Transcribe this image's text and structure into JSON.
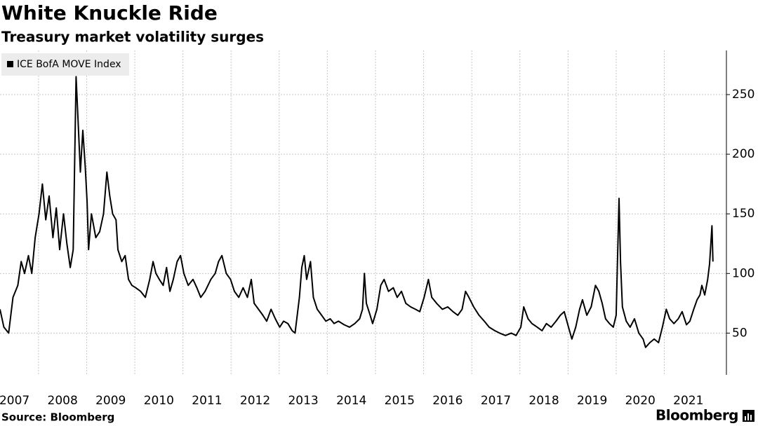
{
  "chart_data": {
    "type": "line",
    "title": "White Knuckle Ride",
    "subtitle": "Treasury market volatility surges",
    "source": "Source: Bloomberg",
    "brand": "Bloomberg",
    "legend": "top-left",
    "grid": true,
    "xlim": [
      2007.2,
      2022.29
    ],
    "ylim": [
      15,
      287
    ],
    "yticks": [
      50,
      100,
      150,
      200,
      250
    ],
    "xticks": [
      2007,
      2008,
      2009,
      2010,
      2011,
      2012,
      2013,
      2014,
      2015,
      2016,
      2017,
      2018,
      2019,
      2020,
      2021
    ],
    "x": [
      2007.2,
      2007.28,
      2007.38,
      2007.47,
      2007.57,
      2007.64,
      2007.71,
      2007.79,
      2007.86,
      2007.93,
      2008.01,
      2008.08,
      2008.15,
      2008.22,
      2008.3,
      2008.37,
      2008.44,
      2008.52,
      2008.59,
      2008.66,
      2008.72,
      2008.78,
      2008.82,
      2008.87,
      2008.92,
      2008.97,
      2009.01,
      2009.04,
      2009.1,
      2009.19,
      2009.27,
      2009.35,
      2009.42,
      2009.48,
      2009.54,
      2009.61,
      2009.65,
      2009.73,
      2009.8,
      2009.87,
      2009.94,
      2010.02,
      2010.12,
      2010.22,
      2010.31,
      2010.38,
      2010.44,
      2010.51,
      2010.59,
      2010.66,
      2010.73,
      2010.8,
      2010.88,
      2010.95,
      2011.02,
      2011.11,
      2011.21,
      2011.29,
      2011.37,
      2011.46,
      2011.58,
      2011.67,
      2011.74,
      2011.81,
      2011.9,
      2011.99,
      2012.07,
      2012.16,
      2012.25,
      2012.34,
      2012.42,
      2012.48,
      2012.57,
      2012.66,
      2012.74,
      2012.83,
      2012.92,
      2013.01,
      2013.09,
      2013.18,
      2013.27,
      2013.33,
      2013.42,
      2013.47,
      2013.52,
      2013.57,
      2013.65,
      2013.71,
      2013.79,
      2013.88,
      2013.97,
      2014.06,
      2014.14,
      2014.23,
      2014.35,
      2014.46,
      2014.57,
      2014.67,
      2014.73,
      2014.77,
      2014.81,
      2014.89,
      2014.94,
      2015.03,
      2015.11,
      2015.18,
      2015.27,
      2015.37,
      2015.45,
      2015.54,
      2015.63,
      2015.73,
      2015.83,
      2015.92,
      2016.01,
      2016.1,
      2016.17,
      2016.27,
      2016.39,
      2016.5,
      2016.61,
      2016.71,
      2016.8,
      2016.87,
      2016.94,
      2017.04,
      2017.15,
      2017.26,
      2017.36,
      2017.48,
      2017.58,
      2017.7,
      2017.82,
      2017.92,
      2018.02,
      2018.08,
      2018.17,
      2018.25,
      2018.36,
      2018.46,
      2018.55,
      2018.65,
      2018.75,
      2018.84,
      2018.92,
      2019.01,
      2019.08,
      2019.16,
      2019.24,
      2019.3,
      2019.39,
      2019.48,
      2019.57,
      2019.64,
      2019.71,
      2019.78,
      2019.86,
      2019.94,
      2020.0,
      2020.06,
      2020.09,
      2020.13,
      2020.21,
      2020.29,
      2020.38,
      2020.47,
      2020.56,
      2020.61,
      2020.7,
      2020.79,
      2020.88,
      2020.96,
      2021.04,
      2021.11,
      2021.2,
      2021.29,
      2021.37,
      2021.46,
      2021.53,
      2021.61,
      2021.68,
      2021.74,
      2021.78,
      2021.84,
      2021.9,
      2021.94,
      2021.99,
      2022.01
    ],
    "series": [
      {
        "name": "ICE BofA MOVE Index",
        "color": "#000000",
        "values": [
          70,
          55,
          50,
          80,
          90,
          110,
          100,
          115,
          100,
          130,
          150,
          175,
          145,
          165,
          130,
          155,
          120,
          150,
          125,
          105,
          120,
          265,
          230,
          185,
          220,
          190,
          160,
          120,
          150,
          130,
          135,
          150,
          185,
          165,
          150,
          145,
          120,
          110,
          115,
          95,
          90,
          88,
          85,
          80,
          95,
          110,
          100,
          95,
          90,
          105,
          85,
          95,
          110,
          115,
          100,
          90,
          95,
          88,
          80,
          85,
          95,
          100,
          110,
          115,
          100,
          95,
          85,
          80,
          88,
          80,
          95,
          75,
          70,
          65,
          60,
          70,
          62,
          55,
          60,
          58,
          52,
          50,
          80,
          105,
          115,
          95,
          110,
          80,
          70,
          65,
          60,
          62,
          58,
          60,
          57,
          55,
          58,
          62,
          70,
          100,
          75,
          65,
          58,
          70,
          90,
          95,
          85,
          88,
          80,
          85,
          75,
          72,
          70,
          68,
          80,
          95,
          80,
          75,
          70,
          72,
          68,
          65,
          70,
          85,
          80,
          72,
          65,
          60,
          55,
          52,
          50,
          48,
          50,
          48,
          55,
          72,
          62,
          58,
          55,
          52,
          58,
          55,
          60,
          65,
          68,
          55,
          45,
          55,
          70,
          78,
          65,
          72,
          90,
          85,
          75,
          62,
          58,
          55,
          65,
          163,
          110,
          72,
          60,
          55,
          62,
          50,
          45,
          38,
          42,
          45,
          42,
          55,
          70,
          62,
          58,
          62,
          68,
          57,
          60,
          70,
          78,
          82,
          90,
          82,
          95,
          108,
          140,
          110
        ]
      }
    ]
  }
}
